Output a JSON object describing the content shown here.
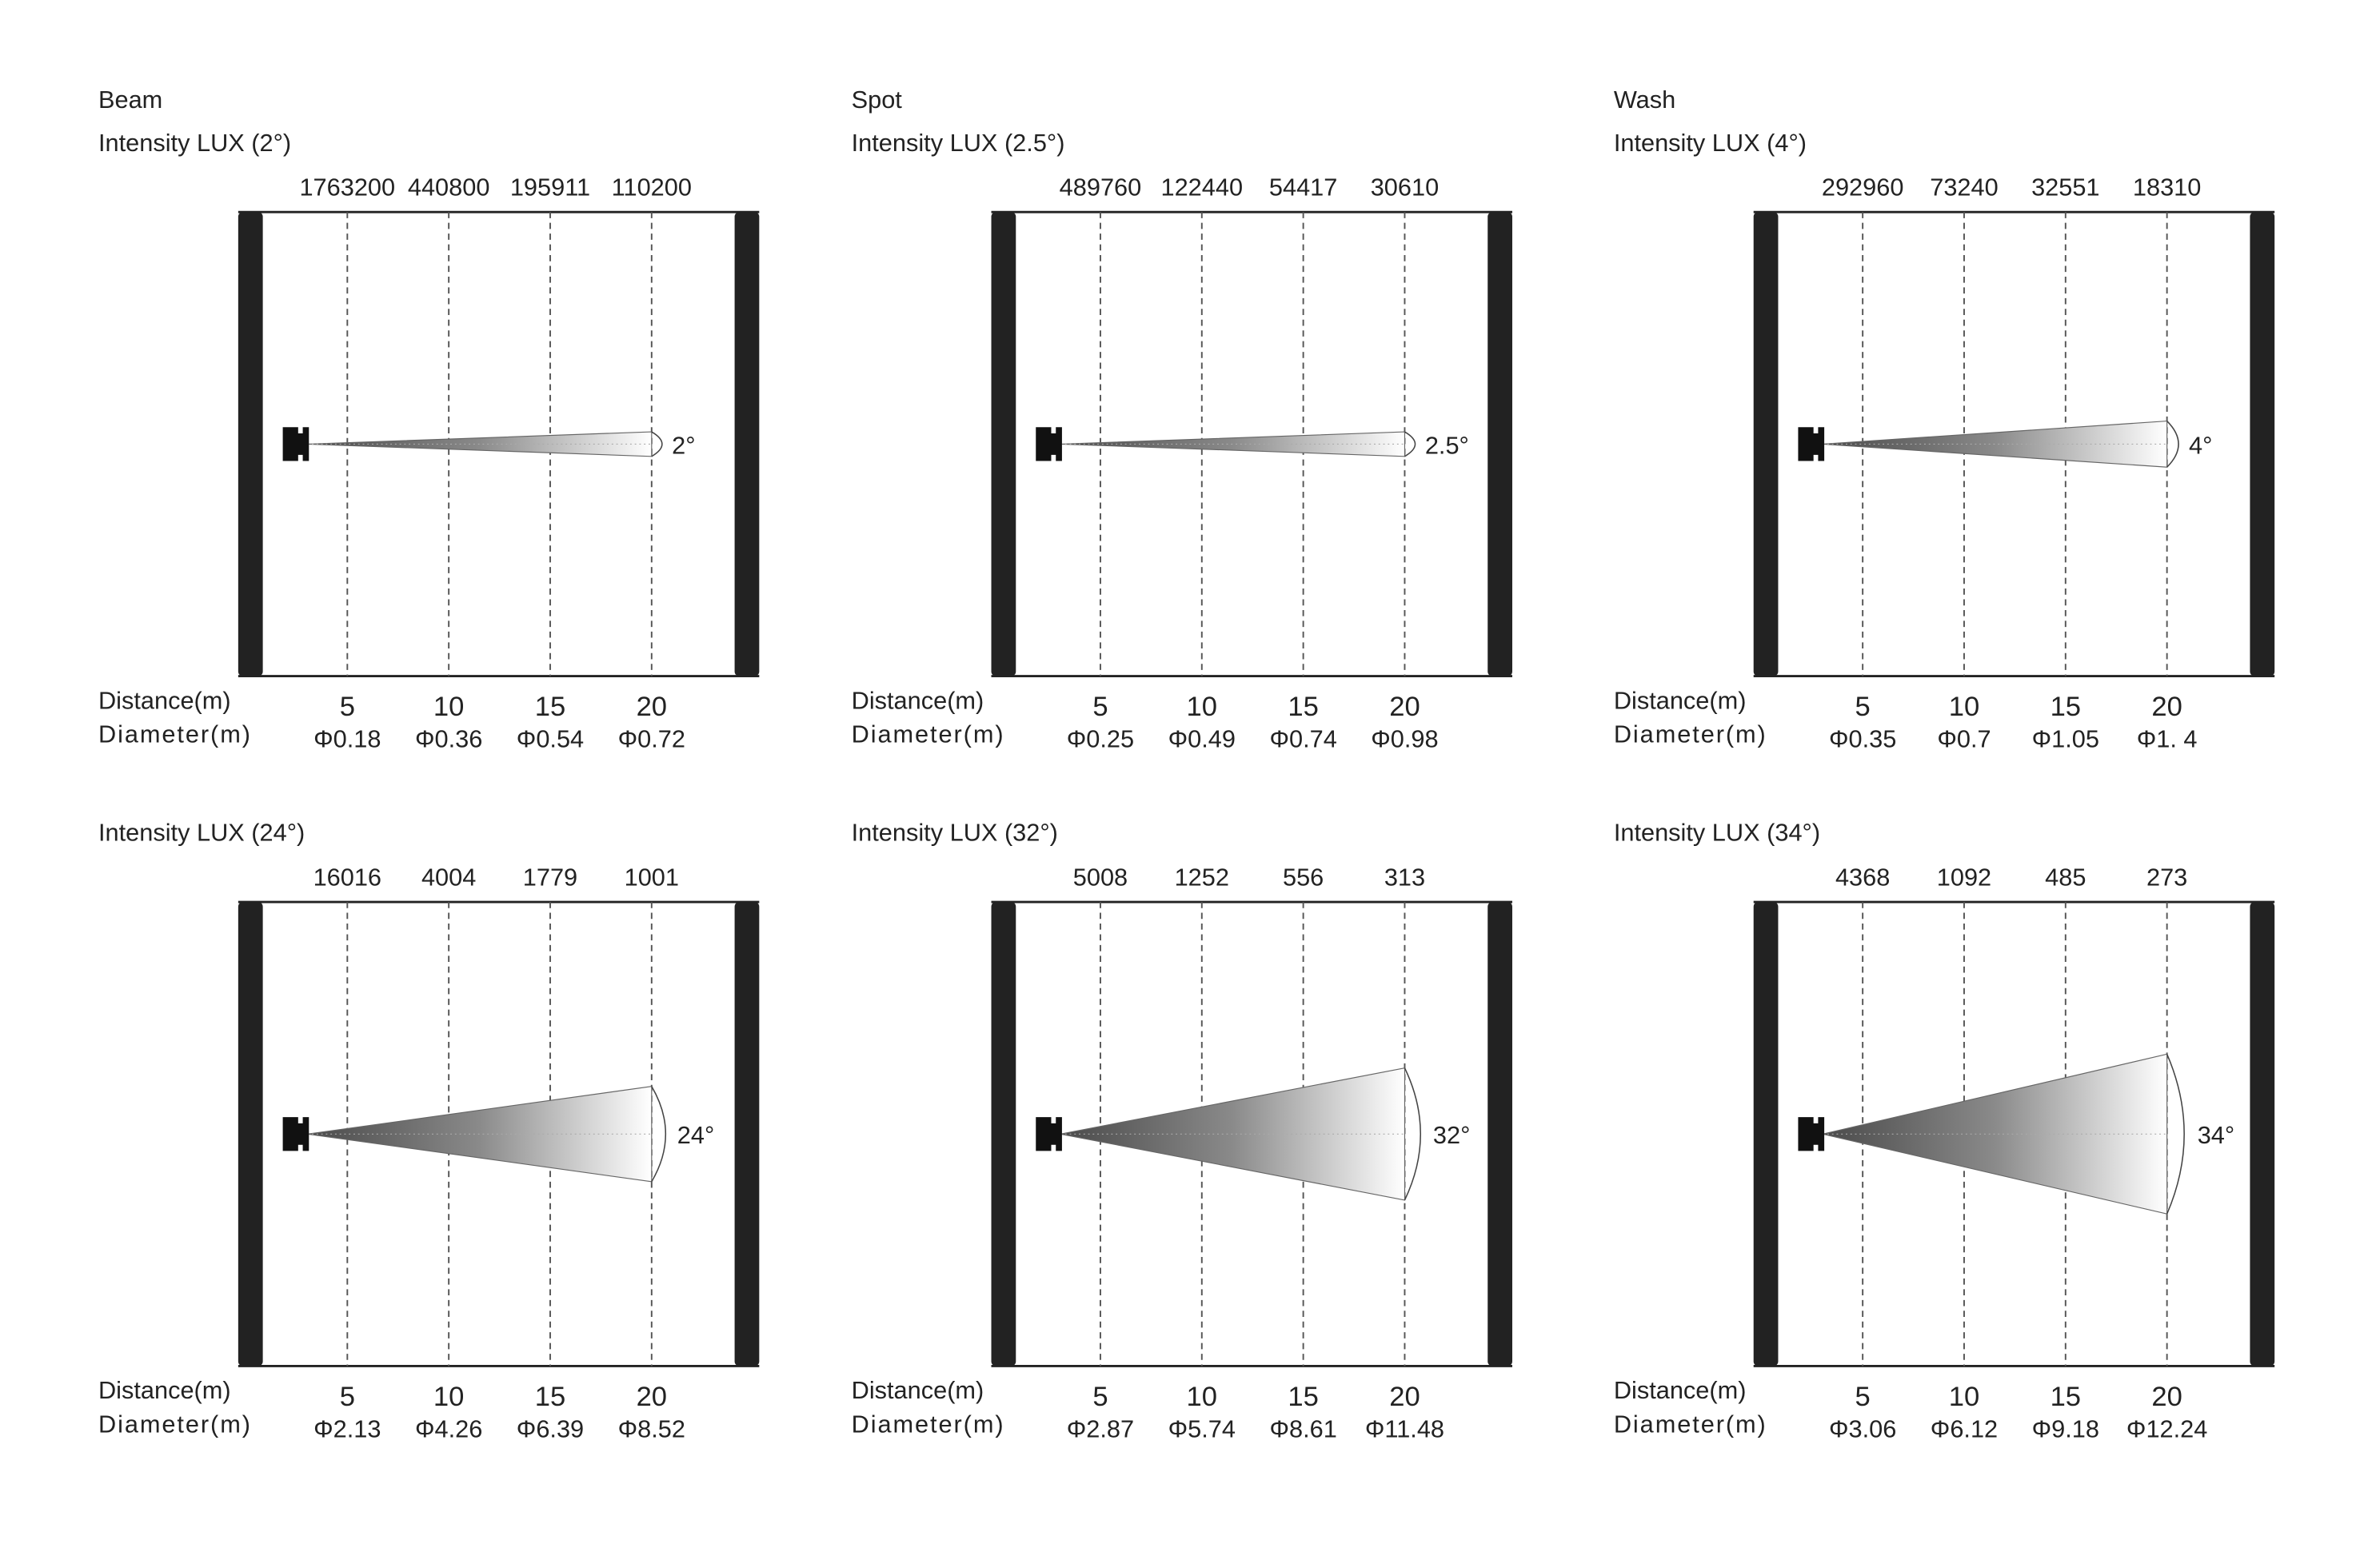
{
  "panels": [
    {
      "title": "Beam",
      "intensity_label": "Intensity LUX (2°)",
      "lux": [
        1763200,
        440800,
        195911,
        110200
      ],
      "angle": "2°",
      "distance_label": "Distance(m)",
      "distances": [
        5,
        10,
        15,
        20
      ],
      "diameter_label": "Diameter(m)",
      "diameters": [
        "Φ0.18",
        "Φ0.36",
        "Φ0.54",
        "Φ0.72"
      ]
    },
    {
      "title": "Spot",
      "intensity_label": "Intensity LUX (2.5°)",
      "lux": [
        489760,
        122440,
        54417,
        30610
      ],
      "angle": "2.5°",
      "distance_label": "Distance(m)",
      "distances": [
        5,
        10,
        15,
        20
      ],
      "diameter_label": "Diameter(m)",
      "diameters": [
        "Φ0.25",
        "Φ0.49",
        "Φ0.74",
        "Φ0.98"
      ]
    },
    {
      "title": "Wash",
      "intensity_label": "Intensity LUX (4°)",
      "lux": [
        292960,
        73240,
        32551,
        18310
      ],
      "angle": "4°",
      "distance_label": "Distance(m)",
      "distances": [
        5,
        10,
        15,
        20
      ],
      "diameter_label": "Diameter(m)",
      "diameters": [
        "Φ0.35",
        "Φ0.7",
        "Φ1.05",
        "Φ1. 4"
      ]
    },
    {
      "intensity_label": "Intensity LUX (24°)",
      "lux": [
        16016,
        4004,
        1779,
        1001
      ],
      "angle": "24°",
      "distance_label": "Distance(m)",
      "distances": [
        5,
        10,
        15,
        20
      ],
      "diameter_label": "Diameter(m)",
      "diameters": [
        "Φ2.13",
        "Φ4.26",
        "Φ6.39",
        "Φ8.52"
      ]
    },
    {
      "intensity_label": "Intensity LUX (32°)",
      "lux": [
        5008,
        1252,
        556,
        313
      ],
      "angle": "32°",
      "distance_label": "Distance(m)",
      "distances": [
        5,
        10,
        15,
        20
      ],
      "diameter_label": "Diameter(m)",
      "diameters": [
        "Φ2.87",
        "Φ5.74",
        "Φ8.61",
        "Φ11.48"
      ]
    },
    {
      "intensity_label": "Intensity LUX (34°)",
      "lux": [
        4368,
        1092,
        485,
        273
      ],
      "angle": "34°",
      "distance_label": "Distance(m)",
      "distances": [
        5,
        10,
        15,
        20
      ],
      "diameter_label": "Diameter(m)",
      "diameters": [
        "Φ3.06",
        "Φ6.12",
        "Φ9.18",
        "Φ12.24"
      ]
    }
  ]
}
